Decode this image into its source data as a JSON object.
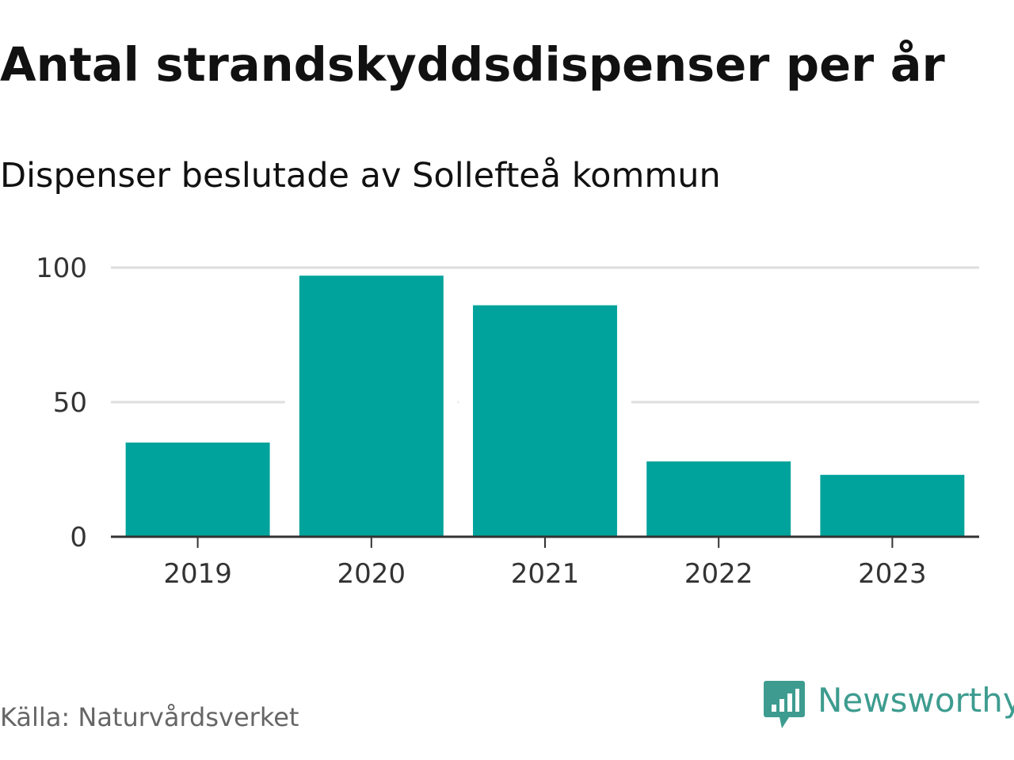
{
  "chart_data": {
    "type": "bar",
    "title": "Antal strandskyddsdispenser per år",
    "subtitle": "Dispenser beslutade av Sollefteå kommun",
    "categories": [
      "2019",
      "2020",
      "2021",
      "2022",
      "2023"
    ],
    "values": [
      35,
      97,
      86,
      28,
      23
    ],
    "xlabel": "",
    "ylabel": "",
    "ylim": [
      0,
      100
    ],
    "yticks": [
      "0",
      "50",
      "100"
    ],
    "grid": true,
    "bar_color": "#00a39b",
    "source": "Källa: Naturvårdsverket"
  },
  "brand": {
    "name": "Newsworthy",
    "logo_icon": "newsworthy-logo-icon",
    "color": "#3d9c8f"
  }
}
